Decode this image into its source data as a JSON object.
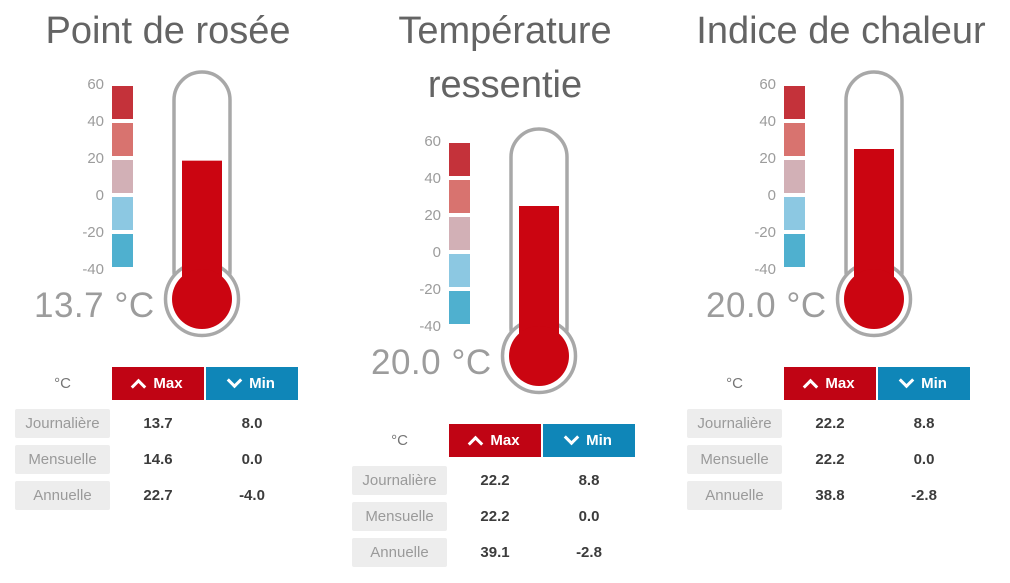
{
  "colors": {
    "accent_red": "#c00414",
    "accent_blue": "#0f86b8",
    "mercury_red": "#cb0511",
    "tube_gray": "#a8a8a8",
    "title_gray": "#646464",
    "value_gray": "#9c9c9c",
    "scale_colors": [
      "#c4323a",
      "#d8736f",
      "#d2b0b6",
      "#8cc8e2",
      "#4fb0cf"
    ]
  },
  "chart_data": [
    {
      "type": "gauge-thermometer",
      "title": "Point de rosée",
      "unit": "°C",
      "current": 13.7,
      "value_display": "13.7 °C",
      "scale_ticks": [
        60,
        40,
        20,
        0,
        -20,
        -40
      ],
      "scale_range": [
        -40,
        60
      ],
      "table": {
        "unit": "°C",
        "max_label": "Max",
        "min_label": "Min",
        "rows": [
          {
            "label": "Journalière",
            "max": "13.7",
            "min": "8.0"
          },
          {
            "label": "Mensuelle",
            "max": "14.6",
            "min": "0.0"
          },
          {
            "label": "Annuelle",
            "max": "22.7",
            "min": "-4.0"
          }
        ]
      }
    },
    {
      "type": "gauge-thermometer",
      "title": "Température ressentie",
      "unit": "°C",
      "current": 20.0,
      "value_display": "20.0 °C",
      "scale_ticks": [
        60,
        40,
        20,
        0,
        -20,
        -40
      ],
      "scale_range": [
        -40,
        60
      ],
      "table": {
        "unit": "°C",
        "max_label": "Max",
        "min_label": "Min",
        "rows": [
          {
            "label": "Journalière",
            "max": "22.2",
            "min": "8.8"
          },
          {
            "label": "Mensuelle",
            "max": "22.2",
            "min": "0.0"
          },
          {
            "label": "Annuelle",
            "max": "39.1",
            "min": "-2.8"
          }
        ]
      }
    },
    {
      "type": "gauge-thermometer",
      "title": "Indice de chaleur",
      "unit": "°C",
      "current": 20.0,
      "value_display": "20.0 °C",
      "scale_ticks": [
        60,
        40,
        20,
        0,
        -20,
        -40
      ],
      "scale_range": [
        -40,
        60
      ],
      "table": {
        "unit": "°C",
        "max_label": "Max",
        "min_label": "Min",
        "rows": [
          {
            "label": "Journalière",
            "max": "22.2",
            "min": "8.8"
          },
          {
            "label": "Mensuelle",
            "max": "22.2",
            "min": "0.0"
          },
          {
            "label": "Annuelle",
            "max": "38.8",
            "min": "-2.8"
          }
        ]
      }
    }
  ]
}
